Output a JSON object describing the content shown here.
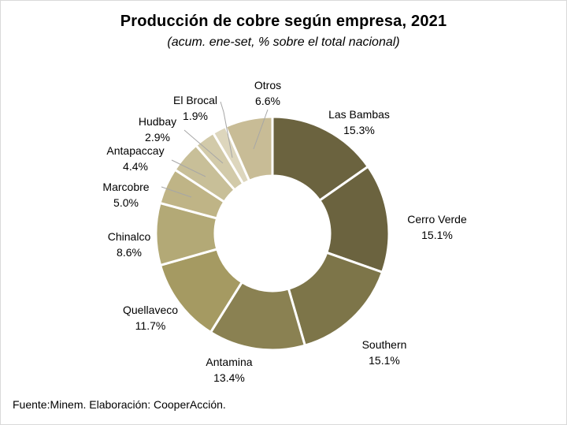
{
  "chart_data": {
    "type": "pie",
    "title": "Producción de cobre según empresa, 2021",
    "subtitle": "(acum. ene-set, % sobre el total nacional)",
    "source": "Fuente:Minem. Elaboración: CooperAcción.",
    "slices": [
      {
        "name": "Las Bambas",
        "value": 15.3,
        "label": "15.3%",
        "color": "#6b633f"
      },
      {
        "name": "Cerro Verde",
        "value": 15.1,
        "label": "15.1%",
        "color": "#6b633f"
      },
      {
        "name": "Southern",
        "value": 15.1,
        "label": "15.1%",
        "color": "#7d7549"
      },
      {
        "name": "Antamina",
        "value": 13.4,
        "label": "13.4%",
        "color": "#8a8152"
      },
      {
        "name": "Quellaveco",
        "value": 11.7,
        "label": "11.7%",
        "color": "#a59a62"
      },
      {
        "name": "Chinalco",
        "value": 8.6,
        "label": "8.6%",
        "color": "#b3a976"
      },
      {
        "name": "Marcobre",
        "value": 5.0,
        "label": "5.0%",
        "color": "#bfb486"
      },
      {
        "name": "Antapaccay",
        "value": 4.4,
        "label": "4.4%",
        "color": "#c8bf98"
      },
      {
        "name": "Hudbay",
        "value": 2.9,
        "label": "2.9%",
        "color": "#d2caa9"
      },
      {
        "name": "El Brocal",
        "value": 1.9,
        "label": "1.9%",
        "color": "#ddd6bd"
      },
      {
        "name": "Otros",
        "value": 6.6,
        "label": "6.6%",
        "color": "#c8bc96"
      }
    ]
  }
}
